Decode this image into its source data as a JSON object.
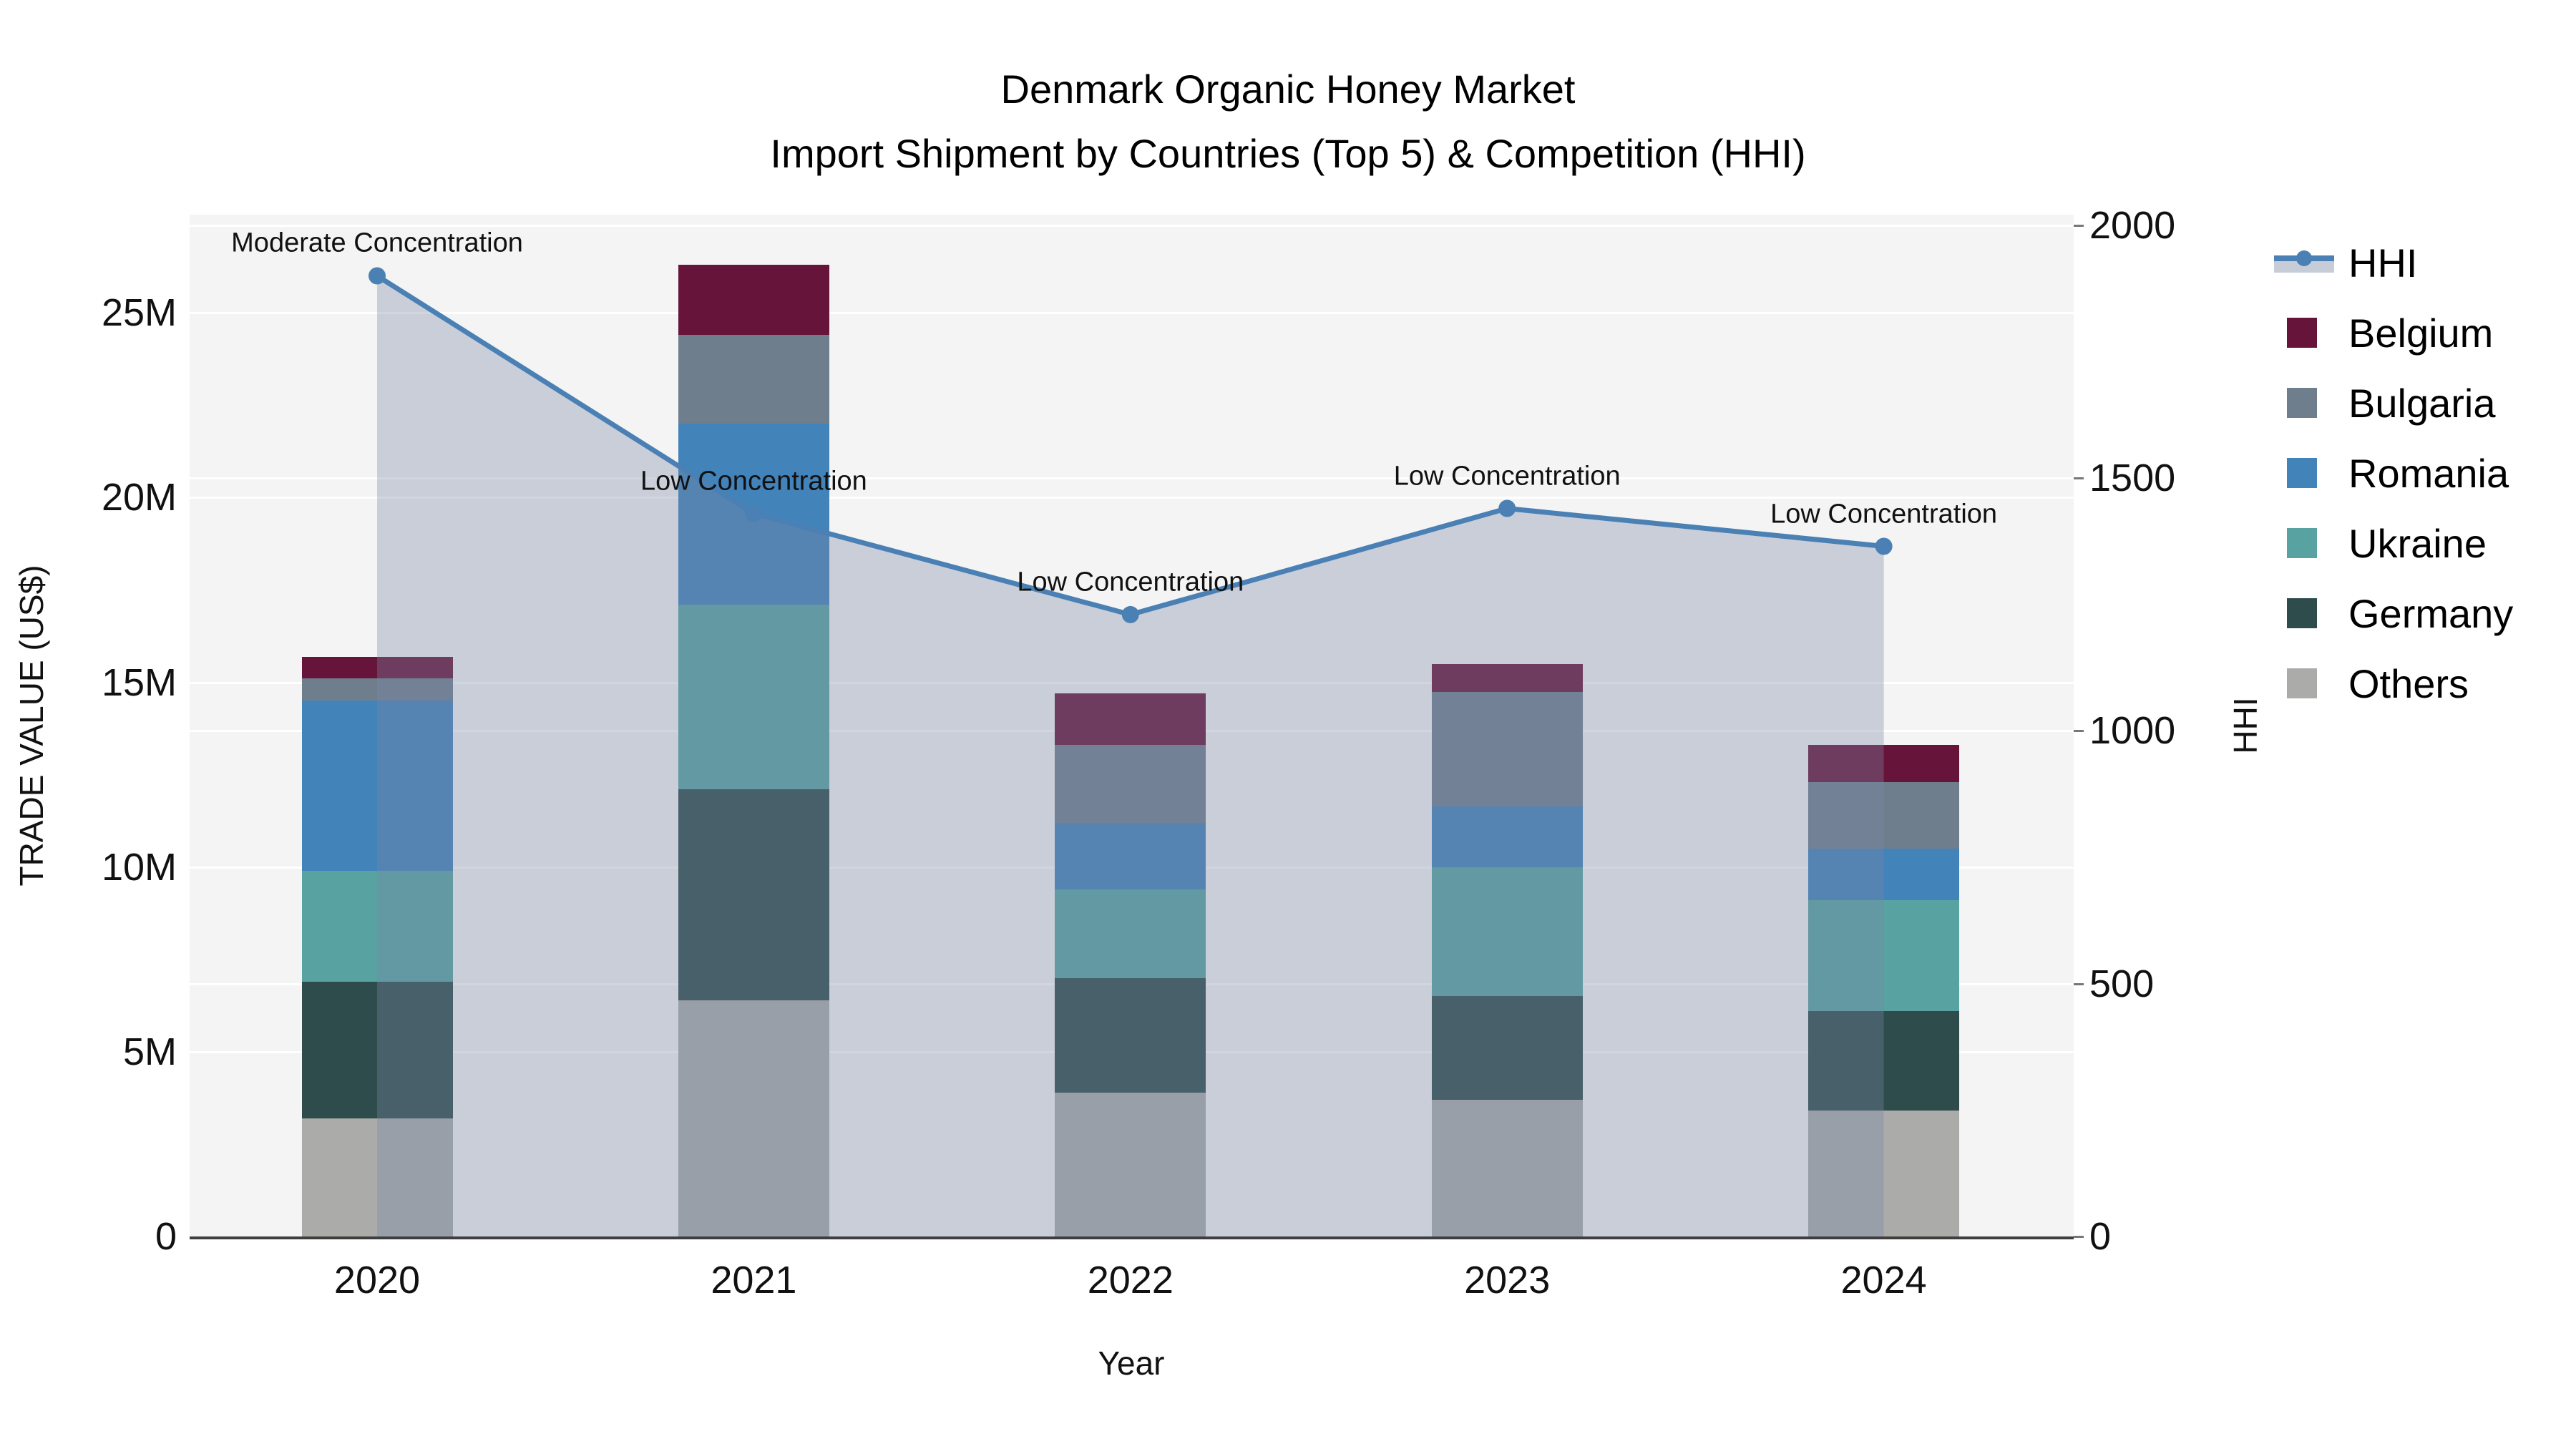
{
  "title": {
    "line1": "Denmark Organic Honey Market",
    "line2": "Import Shipment by Countries (Top 5) & Competition (HHI)"
  },
  "axes": {
    "x": {
      "title": "Year",
      "ticks": [
        "2020",
        "2021",
        "2022",
        "2023",
        "2024"
      ]
    },
    "y_left": {
      "title": "TRADE VALUE (US$)",
      "tick_labels": [
        "0",
        "5M",
        "10M",
        "15M",
        "20M",
        "25M"
      ],
      "tick_values": [
        0,
        5,
        10,
        15,
        20,
        25
      ]
    },
    "y_right": {
      "title": "HHI",
      "tick_labels": [
        "0",
        "500",
        "1000",
        "1500",
        "2000"
      ],
      "tick_values": [
        0,
        500,
        1000,
        1500,
        2000
      ]
    }
  },
  "legend": {
    "items": [
      {
        "label": "HHI",
        "kind": "line"
      },
      {
        "label": "Belgium",
        "kind": "square"
      },
      {
        "label": "Bulgaria",
        "kind": "square"
      },
      {
        "label": "Romania",
        "kind": "square"
      },
      {
        "label": "Ukraine",
        "kind": "square"
      },
      {
        "label": "Germany",
        "kind": "square"
      },
      {
        "label": "Others",
        "kind": "square"
      }
    ]
  },
  "annotations": {
    "by_year": [
      "Moderate Concentration",
      "Low Concentration",
      "Low Concentration",
      "Low Concentration",
      "Low Concentration"
    ]
  },
  "chart_data": {
    "type": "bar+line",
    "stacked": true,
    "categories": [
      "2020",
      "2021",
      "2022",
      "2023",
      "2024"
    ],
    "bar_value_unit": "USD millions (trade value)",
    "series": [
      {
        "name": "Others",
        "color": "#abaca9",
        "values": [
          3.2,
          6.4,
          3.9,
          3.7,
          3.4
        ]
      },
      {
        "name": "Germany",
        "color": "#2d4c4b",
        "values": [
          3.7,
          5.7,
          3.1,
          2.8,
          2.7
        ]
      },
      {
        "name": "Ukraine",
        "color": "#58a3a1",
        "values": [
          3.0,
          5.0,
          2.4,
          3.5,
          3.0
        ]
      },
      {
        "name": "Romania",
        "color": "#4283ba",
        "values": [
          4.6,
          4.9,
          1.8,
          1.65,
          1.4
        ]
      },
      {
        "name": "Bulgaria",
        "color": "#6f7e8d",
        "values": [
          0.6,
          2.4,
          2.1,
          3.1,
          1.8
        ]
      },
      {
        "name": "Belgium",
        "color": "#67143a",
        "values": [
          0.6,
          1.9,
          1.4,
          0.75,
          1.0
        ]
      }
    ],
    "stack_totals": [
      15.7,
      26.3,
      14.7,
      15.5,
      13.3
    ],
    "line_series": {
      "name": "HHI",
      "axis": "right",
      "color": "#4a80b4",
      "area_fill": "#7887a6",
      "area_opacity": 0.35,
      "values": [
        1900,
        1430,
        1230,
        1440,
        1365
      ]
    },
    "xlabel": "Year",
    "ylabel_left": "TRADE VALUE (US$)",
    "ylabel_right": "HHI",
    "ylim_left": [
      0,
      27.66
    ],
    "ylim_right": [
      0,
      2021
    ],
    "grid": true,
    "legend_position": "right-outside"
  },
  "colors": {
    "plot_bg": "#f4f4f4",
    "grid": "#ffffff",
    "axis_line": "#3f3f3f",
    "text": "#111111",
    "legend_band": "#c6cdd9"
  }
}
